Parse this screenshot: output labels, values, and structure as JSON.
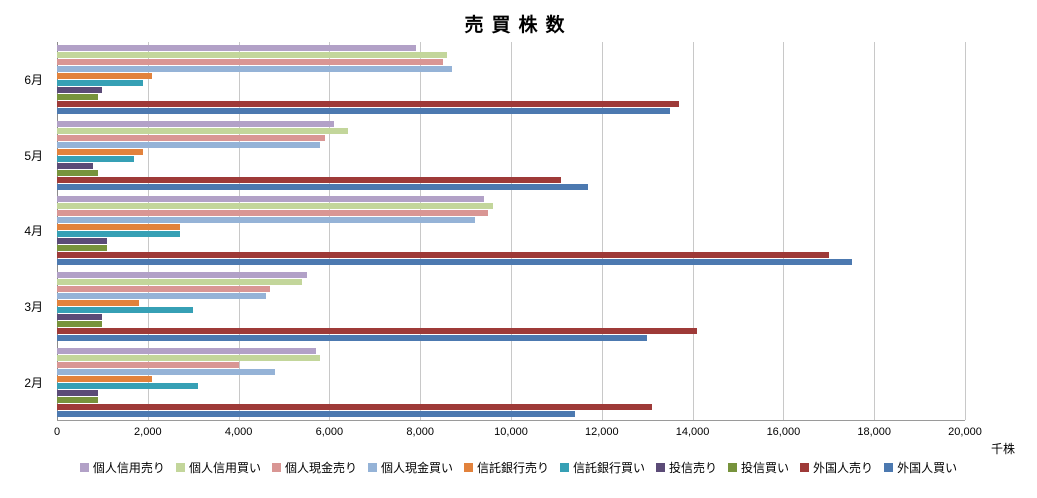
{
  "chart_data": {
    "type": "bar",
    "orientation": "horizontal",
    "title": "売買株数",
    "x_unit": "千株",
    "xlim": [
      0,
      20000
    ],
    "x_ticks": [
      "0",
      "2,000",
      "4,000",
      "6,000",
      "8,000",
      "10,000",
      "12,000",
      "14,000",
      "16,000",
      "18,000",
      "20,000"
    ],
    "categories": [
      "6月",
      "5月",
      "4月",
      "3月",
      "2月"
    ],
    "category_order": "top-to-bottom",
    "grid": true,
    "legend_position": "bottom",
    "series": [
      {
        "name": "個人信用売り",
        "color": "#B2A1C7",
        "values": [
          7900,
          6100,
          9400,
          5500,
          5700
        ]
      },
      {
        "name": "個人信用買い",
        "color": "#C3D69B",
        "values": [
          8600,
          6400,
          9600,
          5400,
          5800
        ]
      },
      {
        "name": "個人現金売り",
        "color": "#D99694",
        "values": [
          8500,
          5900,
          9500,
          4700,
          4000
        ]
      },
      {
        "name": "個人現金買い",
        "color": "#95B3D7",
        "values": [
          8700,
          5800,
          9200,
          4600,
          4800
        ]
      },
      {
        "name": "信託銀行売り",
        "color": "#E2823C",
        "values": [
          2100,
          1900,
          2700,
          1800,
          2100
        ]
      },
      {
        "name": "信託銀行買い",
        "color": "#36A0B5",
        "values": [
          1900,
          1700,
          2700,
          3000,
          3100
        ]
      },
      {
        "name": "投信売り",
        "color": "#5B4B77",
        "values": [
          1000,
          800,
          1100,
          1000,
          900
        ]
      },
      {
        "name": "投信買い",
        "color": "#77933C",
        "values": [
          900,
          900,
          1100,
          1000,
          900
        ]
      },
      {
        "name": "外国人売り",
        "color": "#9E3A38",
        "values": [
          13700,
          11100,
          17000,
          14100,
          13100
        ]
      },
      {
        "name": "外国人買い",
        "color": "#4C79B0",
        "values": [
          13500,
          11700,
          17500,
          13000,
          11400
        ]
      }
    ]
  }
}
